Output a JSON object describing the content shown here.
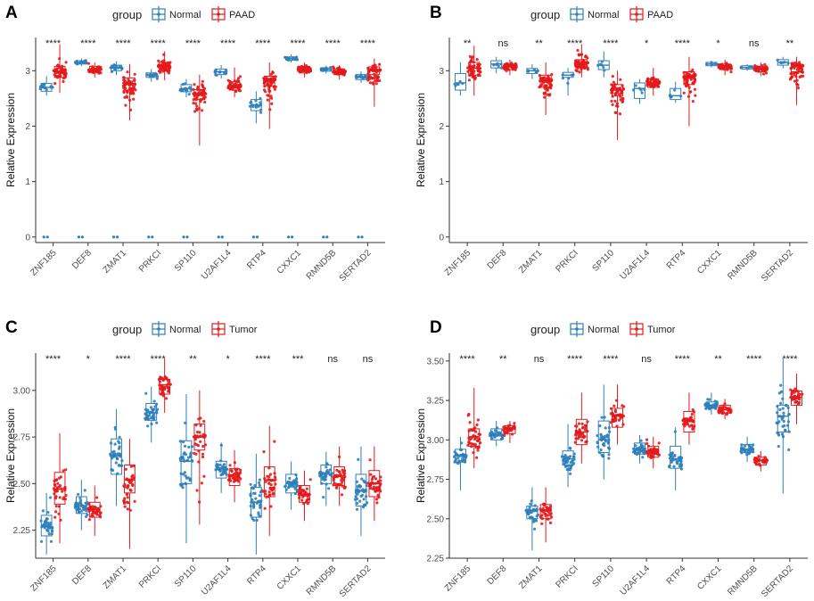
{
  "colors": {
    "normal": "#2e7fba",
    "case": "#e31a1c",
    "axis": "#333333",
    "tick_text": "#4d4d4d"
  },
  "chart_data": [
    {
      "panel": "A",
      "type": "boxplot",
      "ylabel": "Relative Expression",
      "legend_title": "group",
      "legend_position": "top",
      "legend": [
        "Normal",
        "PAAD"
      ],
      "categories": [
        "ZNF185",
        "DEF8",
        "ZMAT1",
        "PRKCI",
        "SP110",
        "U2AF1L4",
        "RTP4",
        "CXXC1",
        "RMND5B",
        "SERTAD2"
      ],
      "significance": [
        "****",
        "****",
        "****",
        "****",
        "****",
        "****",
        "****",
        "****",
        "****",
        "****"
      ],
      "ylim": [
        -0.1,
        3.6
      ],
      "yticks": [
        0,
        1,
        2,
        3
      ],
      "ytick_labels": [
        "0",
        "1",
        "2",
        "3"
      ],
      "series": [
        {
          "name": "Normal",
          "n": 16,
          "zeros": 2,
          "median": [
            2.7,
            3.15,
            3.05,
            2.92,
            2.68,
            2.98,
            2.38,
            3.22,
            3.02,
            2.88
          ],
          "q1": [
            2.63,
            3.12,
            3.0,
            2.88,
            2.62,
            2.93,
            2.28,
            3.19,
            2.99,
            2.84
          ],
          "q3": [
            2.77,
            3.18,
            3.1,
            2.96,
            2.75,
            3.03,
            2.48,
            3.25,
            3.05,
            2.93
          ],
          "min": [
            2.55,
            3.08,
            2.92,
            2.8,
            2.52,
            2.86,
            2.05,
            3.15,
            2.95,
            2.78
          ],
          "max": [
            2.9,
            3.22,
            3.17,
            3.03,
            2.85,
            3.1,
            2.63,
            3.29,
            3.09,
            2.99
          ]
        },
        {
          "name": "PAAD",
          "n": 60,
          "zeros": 0,
          "median": [
            2.98,
            3.02,
            2.75,
            3.08,
            2.58,
            2.72,
            2.82,
            3.02,
            2.98,
            3.0
          ],
          "q1": [
            2.88,
            2.97,
            2.65,
            3.0,
            2.48,
            2.65,
            2.72,
            2.96,
            2.93,
            2.93
          ],
          "q3": [
            3.08,
            3.08,
            2.87,
            3.15,
            2.66,
            2.8,
            2.9,
            3.08,
            3.03,
            3.07
          ],
          "min": [
            2.6,
            2.88,
            2.1,
            2.83,
            1.65,
            2.52,
            1.95,
            2.88,
            2.84,
            2.35
          ],
          "max": [
            3.48,
            3.15,
            3.12,
            3.35,
            2.93,
            3.06,
            3.15,
            3.15,
            3.1,
            3.22
          ]
        }
      ]
    },
    {
      "panel": "B",
      "type": "boxplot",
      "ylabel": "Relative Expression",
      "legend_title": "group",
      "legend_position": "top",
      "legend": [
        "Normal",
        "PAAD"
      ],
      "categories": [
        "ZNF185",
        "DEF8",
        "ZMAT1",
        "PRKCI",
        "SP110",
        "U2AF1L4",
        "RTP4",
        "CXXC1",
        "RMND5B",
        "SERTAD2"
      ],
      "significance": [
        "**",
        "ns",
        "**",
        "****",
        "****",
        "*",
        "****",
        "*",
        "ns",
        "**"
      ],
      "ylim": [
        -0.1,
        3.6
      ],
      "yticks": [
        0,
        1,
        2,
        3
      ],
      "ytick_labels": [
        "0",
        "1",
        "2",
        "3"
      ],
      "series": [
        {
          "name": "Normal",
          "n": 6,
          "zeros": 0,
          "median": [
            2.78,
            3.12,
            3.0,
            2.92,
            3.1,
            2.68,
            2.55,
            3.12,
            3.06,
            3.15
          ],
          "q1": [
            2.65,
            3.05,
            2.95,
            2.88,
            3.02,
            2.5,
            2.48,
            3.09,
            3.03,
            3.1
          ],
          "q3": [
            2.95,
            3.18,
            3.04,
            2.97,
            3.18,
            2.78,
            2.68,
            3.15,
            3.09,
            3.2
          ],
          "min": [
            2.55,
            2.95,
            2.85,
            2.55,
            2.88,
            2.4,
            2.42,
            3.06,
            3.0,
            3.04
          ],
          "max": [
            3.15,
            3.25,
            3.12,
            3.05,
            3.35,
            2.85,
            2.8,
            3.18,
            3.12,
            3.25
          ]
        },
        {
          "name": "PAAD",
          "n": 60,
          "zeros": 0,
          "median": [
            3.05,
            3.08,
            2.82,
            3.12,
            2.65,
            2.78,
            2.88,
            3.08,
            3.04,
            3.08
          ],
          "q1": [
            2.92,
            3.02,
            2.7,
            3.05,
            2.55,
            2.7,
            2.75,
            3.02,
            2.98,
            2.98
          ],
          "q3": [
            3.15,
            3.12,
            2.92,
            3.2,
            2.75,
            2.85,
            2.98,
            3.12,
            3.08,
            3.12
          ],
          "min": [
            2.55,
            2.92,
            2.2,
            2.88,
            1.75,
            2.55,
            2.0,
            2.92,
            2.9,
            2.38
          ],
          "max": [
            3.45,
            3.2,
            3.15,
            3.48,
            3.0,
            3.05,
            3.25,
            3.2,
            3.15,
            3.25
          ]
        }
      ]
    },
    {
      "panel": "C",
      "type": "boxplot",
      "ylabel": "Relative Expression",
      "legend_title": "group",
      "legend_position": "top",
      "legend": [
        "Normal",
        "Tumor"
      ],
      "categories": [
        "ZNF185",
        "DEF8",
        "ZMAT1",
        "PRKCI",
        "SP110",
        "U2AF1L4",
        "RTP4",
        "CXXC1",
        "RMND5B",
        "SERTAD2"
      ],
      "significance": [
        "****",
        "*",
        "****",
        "****",
        "**",
        "*",
        "****",
        "***",
        "ns",
        "ns"
      ],
      "ylim": [
        2.1,
        3.2
      ],
      "yticks": [
        2.25,
        2.5,
        2.75,
        3.0
      ],
      "ytick_labels": [
        "2.25",
        "2.50",
        "2.75",
        "3.00"
      ],
      "series": [
        {
          "name": "Normal",
          "n": 40,
          "zeros": 0,
          "median": [
            2.27,
            2.38,
            2.65,
            2.88,
            2.62,
            2.58,
            2.4,
            2.5,
            2.55,
            2.46
          ],
          "q1": [
            2.22,
            2.34,
            2.55,
            2.84,
            2.5,
            2.53,
            2.32,
            2.45,
            2.5,
            2.38
          ],
          "q3": [
            2.33,
            2.43,
            2.74,
            2.93,
            2.73,
            2.62,
            2.48,
            2.55,
            2.6,
            2.55
          ],
          "min": [
            2.12,
            2.25,
            2.38,
            2.72,
            2.18,
            2.45,
            2.12,
            2.36,
            2.38,
            2.22
          ],
          "max": [
            2.45,
            2.52,
            2.9,
            3.02,
            2.98,
            2.72,
            2.66,
            2.62,
            2.67,
            2.7
          ]
        },
        {
          "name": "Tumor",
          "n": 40,
          "zeros": 0,
          "median": [
            2.47,
            2.36,
            2.52,
            3.03,
            2.75,
            2.54,
            2.52,
            2.44,
            2.54,
            2.5
          ],
          "q1": [
            2.39,
            2.32,
            2.45,
            2.98,
            2.68,
            2.49,
            2.43,
            2.4,
            2.49,
            2.43
          ],
          "q3": [
            2.56,
            2.4,
            2.6,
            3.06,
            2.82,
            2.58,
            2.59,
            2.49,
            2.59,
            2.57
          ],
          "min": [
            2.18,
            2.22,
            2.15,
            2.88,
            2.28,
            2.4,
            2.22,
            2.3,
            2.38,
            2.3
          ],
          "max": [
            2.77,
            2.49,
            2.74,
            3.17,
            3.0,
            2.68,
            2.81,
            2.57,
            2.7,
            2.7
          ]
        }
      ]
    },
    {
      "panel": "D",
      "type": "boxplot",
      "ylabel": "Relative Expression",
      "legend_title": "group",
      "legend_position": "top",
      "legend": [
        "Normal",
        "Tumor"
      ],
      "categories": [
        "ZNF185",
        "DEF8",
        "ZMAT1",
        "PRKCI",
        "SP110",
        "U2AF1L4",
        "RTP4",
        "CXXC1",
        "RMND5B",
        "SERTAD2"
      ],
      "significance": [
        "****",
        "**",
        "ns",
        "****",
        "****",
        "ns",
        "****",
        "**",
        "****",
        "****"
      ],
      "ylim": [
        2.25,
        3.55
      ],
      "yticks": [
        2.25,
        2.5,
        2.75,
        3.0,
        3.25,
        3.5
      ],
      "ytick_labels": [
        "2.25",
        "2.50",
        "2.75",
        "3.00",
        "3.25",
        "3.50"
      ],
      "series": [
        {
          "name": "Normal",
          "n": 40,
          "zeros": 0,
          "median": [
            2.9,
            3.03,
            2.55,
            2.88,
            3.0,
            2.94,
            2.88,
            3.22,
            2.94,
            3.15
          ],
          "q1": [
            2.86,
            3.0,
            2.5,
            2.84,
            2.92,
            2.91,
            2.82,
            3.2,
            2.92,
            3.05
          ],
          "q3": [
            2.94,
            3.07,
            2.58,
            2.93,
            3.12,
            2.98,
            2.96,
            3.24,
            2.97,
            3.22
          ],
          "min": [
            2.68,
            2.96,
            2.3,
            2.7,
            2.75,
            2.85,
            2.68,
            3.16,
            2.86,
            2.66
          ],
          "max": [
            3.02,
            3.12,
            2.7,
            3.1,
            3.35,
            3.03,
            3.08,
            3.3,
            3.02,
            3.52
          ]
        },
        {
          "name": "Tumor",
          "n": 40,
          "zeros": 0,
          "median": [
            3.02,
            3.07,
            2.55,
            3.05,
            3.15,
            2.93,
            3.12,
            3.19,
            2.87,
            3.27
          ],
          "q1": [
            2.96,
            3.04,
            2.5,
            2.97,
            3.08,
            2.89,
            3.05,
            3.17,
            2.84,
            3.22
          ],
          "q3": [
            3.07,
            3.09,
            2.59,
            3.13,
            3.2,
            2.96,
            3.18,
            3.22,
            2.89,
            3.31
          ],
          "min": [
            2.82,
            2.98,
            2.35,
            2.85,
            2.97,
            2.82,
            2.97,
            3.13,
            2.8,
            3.1
          ],
          "max": [
            3.33,
            3.12,
            2.7,
            3.3,
            3.35,
            3.02,
            3.3,
            3.26,
            2.93,
            3.42
          ]
        }
      ]
    }
  ]
}
